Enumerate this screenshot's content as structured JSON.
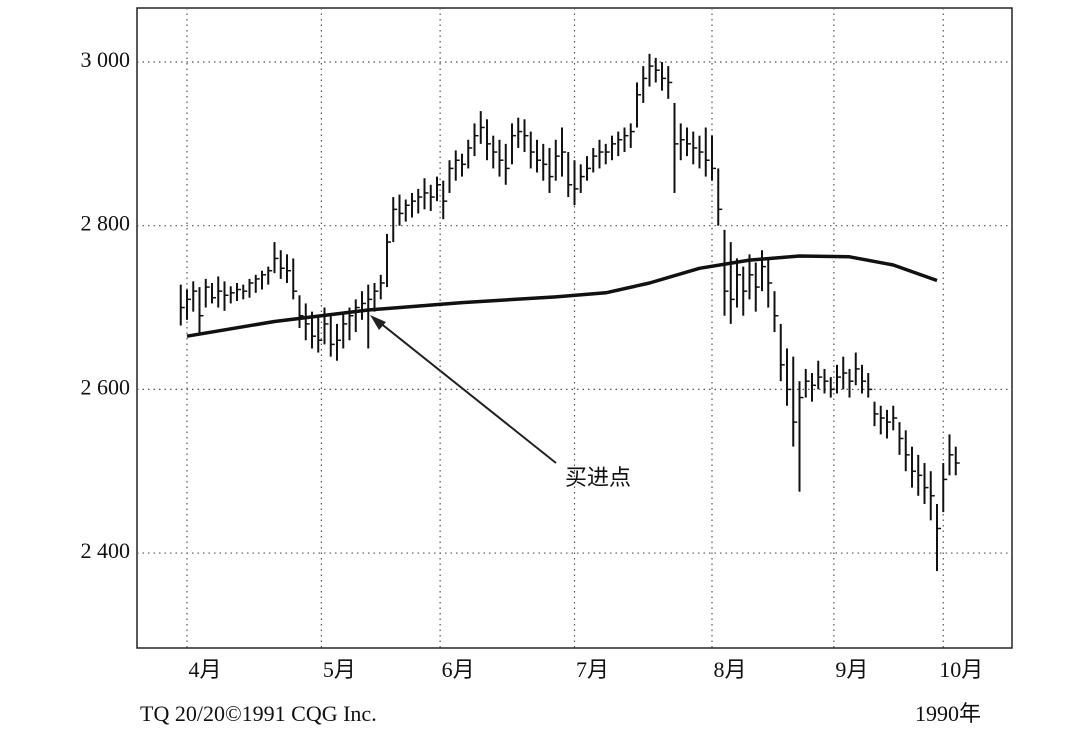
{
  "chart_data": {
    "type": "ohlc",
    "annotation": "买进点",
    "source": "TQ 20/20©1991 CQG Inc.",
    "year_label": "1990年",
    "color": "#111111",
    "grid": true,
    "xlim": [
      -7,
      133
    ],
    "ylim": [
      2284,
      3066
    ],
    "yticks": [
      {
        "value": 2400,
        "label": "2 400"
      },
      {
        "value": 2600,
        "label": "2 600"
      },
      {
        "value": 2800,
        "label": "2 800"
      },
      {
        "value": 3000,
        "label": "3 000"
      }
    ],
    "xticks": [
      {
        "value": 1,
        "label": "4月"
      },
      {
        "value": 22.5,
        "label": "5月"
      },
      {
        "value": 41.5,
        "label": "6月"
      },
      {
        "value": 63,
        "label": "7月"
      },
      {
        "value": 85,
        "label": "8月"
      },
      {
        "value": 104.5,
        "label": "9月"
      },
      {
        "value": 122,
        "label": "10月"
      }
    ],
    "x": [
      0,
      1,
      2,
      3,
      4,
      5,
      6,
      7,
      8,
      9,
      10,
      11,
      12,
      13,
      14,
      15,
      16,
      17,
      18,
      19,
      20,
      21,
      22,
      23,
      24,
      25,
      26,
      27,
      28,
      29,
      30,
      31,
      32,
      33,
      34,
      35,
      36,
      37,
      38,
      39,
      40,
      41,
      42,
      43,
      44,
      45,
      46,
      47,
      48,
      49,
      50,
      51,
      52,
      53,
      54,
      55,
      56,
      57,
      58,
      59,
      60,
      61,
      62,
      63,
      64,
      65,
      66,
      67,
      68,
      69,
      70,
      71,
      72,
      73,
      74,
      75,
      76,
      77,
      78,
      79,
      80,
      81,
      82,
      83,
      84,
      85,
      86,
      87,
      88,
      89,
      90,
      91,
      92,
      93,
      94,
      95,
      96,
      97,
      98,
      99,
      100,
      101,
      102,
      103,
      104,
      105,
      106,
      107,
      108,
      109,
      110,
      111,
      112,
      113,
      114,
      115,
      116,
      117,
      118,
      119,
      120,
      121,
      122,
      123,
      124
    ],
    "high": [
      2728,
      2722,
      2732,
      2725,
      2735,
      2730,
      2738,
      2732,
      2726,
      2730,
      2728,
      2735,
      2740,
      2745,
      2750,
      2780,
      2770,
      2765,
      2760,
      2715,
      2705,
      2695,
      2690,
      2700,
      2690,
      2680,
      2695,
      2700,
      2710,
      2720,
      2728,
      2730,
      2740,
      2790,
      2835,
      2838,
      2832,
      2840,
      2845,
      2858,
      2850,
      2860,
      2855,
      2880,
      2892,
      2888,
      2905,
      2925,
      2940,
      2930,
      2910,
      2905,
      2900,
      2925,
      2932,
      2930,
      2915,
      2905,
      2900,
      2895,
      2905,
      2920,
      2890,
      2880,
      2875,
      2885,
      2895,
      2905,
      2900,
      2910,
      2915,
      2920,
      2925,
      2975,
      2995,
      3010,
      3005,
      3000,
      2995,
      2950,
      2925,
      2920,
      2915,
      2910,
      2920,
      2910,
      2870,
      2795,
      2780,
      2760,
      2750,
      2765,
      2755,
      2770,
      2760,
      2720,
      2680,
      2650,
      2640,
      2610,
      2625,
      2620,
      2635,
      2625,
      2615,
      2630,
      2640,
      2625,
      2645,
      2630,
      2620,
      2585,
      2580,
      2575,
      2580,
      2560,
      2550,
      2530,
      2520,
      2510,
      2500,
      2460,
      2510,
      2545,
      2530
    ],
    "low": [
      2678,
      2685,
      2695,
      2668,
      2700,
      2705,
      2700,
      2696,
      2705,
      2708,
      2710,
      2712,
      2718,
      2722,
      2728,
      2742,
      2735,
      2730,
      2710,
      2675,
      2660,
      2650,
      2645,
      2655,
      2640,
      2635,
      2650,
      2660,
      2670,
      2685,
      2650,
      2695,
      2710,
      2725,
      2780,
      2800,
      2805,
      2810,
      2815,
      2820,
      2818,
      2830,
      2808,
      2840,
      2855,
      2860,
      2870,
      2885,
      2900,
      2880,
      2870,
      2860,
      2850,
      2875,
      2895,
      2890,
      2870,
      2865,
      2855,
      2840,
      2855,
      2860,
      2835,
      2825,
      2840,
      2855,
      2865,
      2870,
      2875,
      2880,
      2885,
      2890,
      2895,
      2920,
      2950,
      2970,
      2975,
      2965,
      2955,
      2840,
      2880,
      2885,
      2875,
      2870,
      2860,
      2855,
      2800,
      2690,
      2680,
      2700,
      2690,
      2710,
      2695,
      2720,
      2700,
      2670,
      2610,
      2580,
      2530,
      2475,
      2590,
      2585,
      2600,
      2595,
      2590,
      2595,
      2600,
      2590,
      2605,
      2595,
      2590,
      2555,
      2545,
      2540,
      2550,
      2520,
      2500,
      2480,
      2470,
      2460,
      2440,
      2378,
      2450,
      2495,
      2495
    ],
    "close": [
      2700,
      2710,
      2720,
      2690,
      2725,
      2712,
      2720,
      2715,
      2718,
      2722,
      2720,
      2730,
      2735,
      2740,
      2745,
      2760,
      2748,
      2745,
      2720,
      2690,
      2680,
      2665,
      2660,
      2680,
      2655,
      2660,
      2680,
      2690,
      2700,
      2705,
      2710,
      2720,
      2730,
      2780,
      2820,
      2815,
      2825,
      2830,
      2835,
      2840,
      2835,
      2850,
      2830,
      2870,
      2880,
      2875,
      2895,
      2910,
      2920,
      2900,
      2890,
      2880,
      2870,
      2910,
      2915,
      2910,
      2890,
      2880,
      2875,
      2860,
      2885,
      2890,
      2850,
      2845,
      2860,
      2870,
      2885,
      2890,
      2890,
      2900,
      2905,
      2910,
      2915,
      2960,
      2980,
      2995,
      2990,
      2980,
      2975,
      2900,
      2905,
      2900,
      2895,
      2890,
      2880,
      2870,
      2820,
      2720,
      2710,
      2740,
      2720,
      2740,
      2725,
      2750,
      2730,
      2690,
      2630,
      2600,
      2560,
      2590,
      2610,
      2605,
      2615,
      2610,
      2600,
      2615,
      2620,
      2610,
      2625,
      2610,
      2600,
      2570,
      2565,
      2560,
      2565,
      2540,
      2520,
      2500,
      2495,
      2480,
      2470,
      2430,
      2490,
      2520,
      2510
    ],
    "moving_average": {
      "color": "#111111",
      "x": [
        1,
        15,
        30,
        45,
        60,
        68,
        75,
        83,
        91,
        99,
        107,
        114,
        121
      ],
      "values": [
        2665,
        2683,
        2697,
        2706,
        2713,
        2718,
        2730,
        2748,
        2758,
        2763,
        2762,
        2752,
        2733
      ]
    }
  }
}
